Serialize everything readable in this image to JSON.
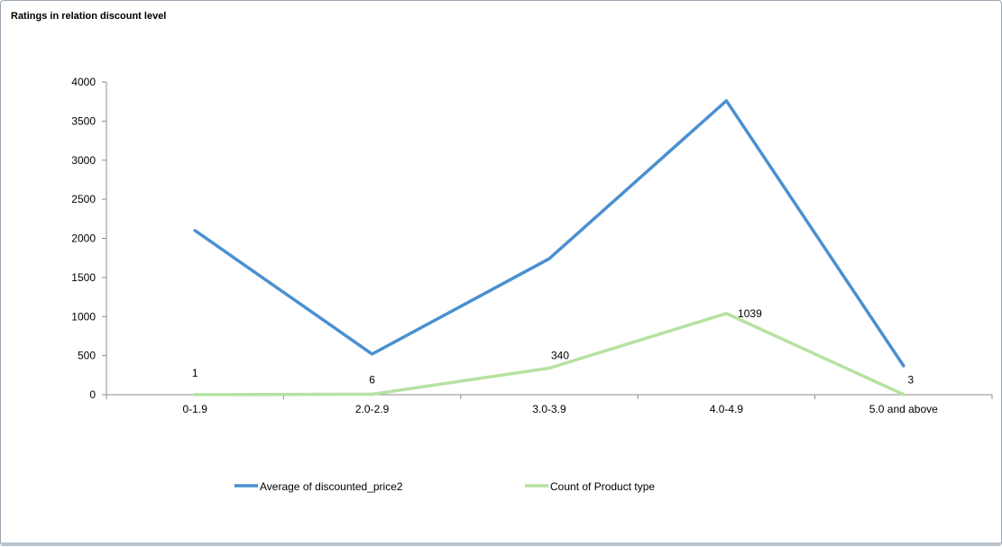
{
  "chart_data": {
    "type": "line",
    "title": "Ratings in relation discount level",
    "categories": [
      "0-1.9",
      "2.0-2.9",
      "3.0-3.9",
      "4.0-4.9",
      "5.0 and above"
    ],
    "ylim": [
      0,
      4000
    ],
    "yticks": [
      0,
      500,
      1000,
      1500,
      2000,
      2500,
      3000,
      3500,
      4000
    ],
    "grid": false,
    "legend_position": "bottom",
    "series": [
      {
        "name": "Average of discounted_price2",
        "color": "#4a90d0",
        "values": [
          2100,
          520,
          1740,
          3760,
          370
        ]
      },
      {
        "name": "Count of Product type",
        "color": "#b6e2a1",
        "values": [
          1,
          6,
          340,
          1039,
          3
        ],
        "labels": [
          "1",
          "6",
          "340",
          "1039",
          "3"
        ]
      }
    ]
  }
}
